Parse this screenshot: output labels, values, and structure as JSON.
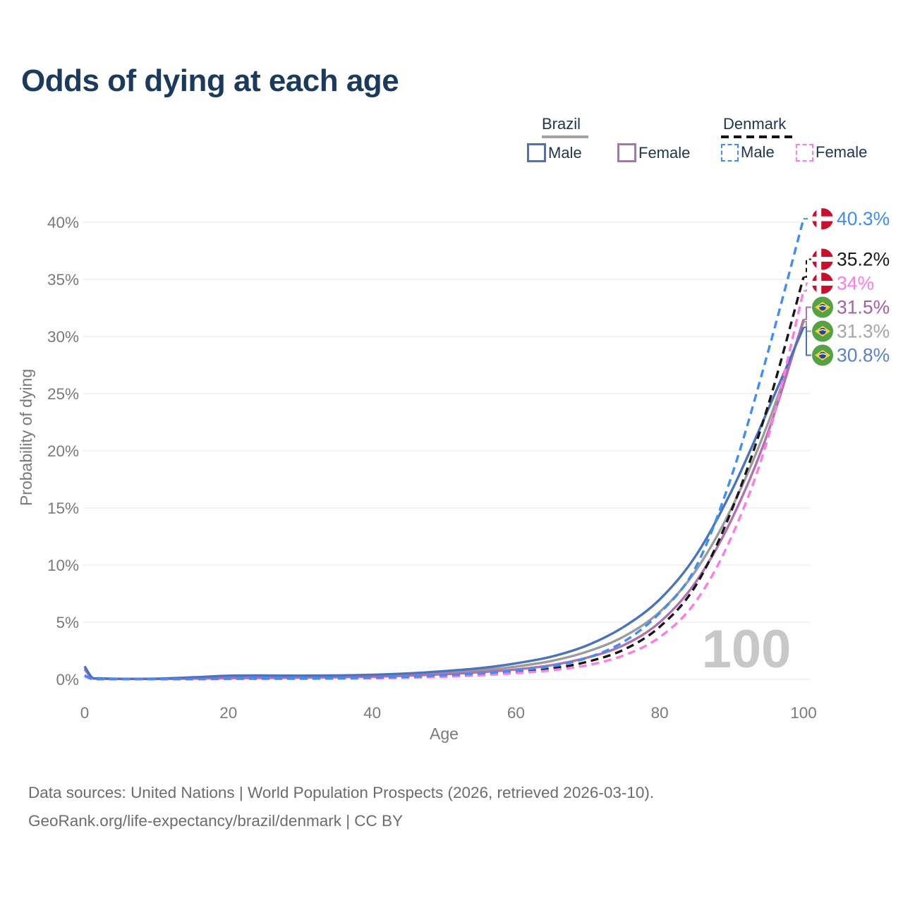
{
  "header": {
    "title": "Odds of dying at each age"
  },
  "legend": {
    "groups": [
      {
        "id": "brazil",
        "label": "Brazil",
        "underline_style": "solid",
        "underline_color": "#a3a3a3",
        "items": [
          {
            "id": "brazil-male",
            "label": "Male",
            "color": "#4a72bd",
            "dash": false
          },
          {
            "id": "brazil-female",
            "label": "Female",
            "color": "#b36fb0",
            "dash": false
          }
        ]
      },
      {
        "id": "denmark",
        "label": "Denmark",
        "underline_style": "dashed",
        "underline_color": "#141414",
        "items": [
          {
            "id": "denmark-male",
            "label": "Male",
            "color": "#3e8ef6",
            "dash": true
          },
          {
            "id": "denmark-female",
            "label": "Female",
            "color": "#ff7be4",
            "dash": true
          }
        ]
      }
    ]
  },
  "chart_data": {
    "type": "line",
    "title": "Odds of dying at each age",
    "xlabel": "Age",
    "ylabel": "Probability of dying",
    "xlim": [
      0,
      100
    ],
    "ylim": [
      0,
      40
    ],
    "x_ticks": [
      0,
      20,
      40,
      60,
      80,
      100
    ],
    "y_ticks": [
      0,
      5,
      10,
      15,
      20,
      25,
      30,
      35,
      40
    ],
    "y_tick_suffix": "%",
    "grid": "horizontal",
    "legend_position": "top-right",
    "watermark": "100",
    "x": [
      0,
      1,
      2,
      5,
      10,
      15,
      20,
      25,
      30,
      35,
      40,
      45,
      50,
      55,
      60,
      65,
      70,
      75,
      80,
      85,
      90,
      95,
      100
    ],
    "series": [
      {
        "id": "brazil-both",
        "name": "Brazil Both sexes",
        "country": "Brazil",
        "sex": "Both",
        "color": "#9b9b9b",
        "label_color": "#a6a6a6",
        "dash": false,
        "flag": "brazil",
        "end_label": "31.3%",
        "values": [
          1.0,
          0.16,
          0.08,
          0.05,
          0.05,
          0.12,
          0.22,
          0.24,
          0.24,
          0.26,
          0.31,
          0.42,
          0.58,
          0.8,
          1.12,
          1.62,
          2.45,
          3.75,
          5.9,
          9.5,
          15.0,
          22.3,
          31.3
        ]
      },
      {
        "id": "brazil-female",
        "name": "Brazil Female",
        "country": "Brazil",
        "sex": "Female",
        "color": "#b36fb0",
        "label_color": "#a85fa5",
        "dash": false,
        "flag": "brazil",
        "end_label": "31.5%",
        "values": [
          0.88,
          0.14,
          0.07,
          0.04,
          0.04,
          0.07,
          0.11,
          0.13,
          0.15,
          0.18,
          0.23,
          0.32,
          0.45,
          0.63,
          0.87,
          1.25,
          1.92,
          3.0,
          5.0,
          8.5,
          14.0,
          21.5,
          31.5
        ]
      },
      {
        "id": "brazil-male",
        "name": "Brazil Male",
        "country": "Brazil",
        "sex": "Male",
        "color": "#4a72bd",
        "label_color": "#5b82c8",
        "dash": false,
        "flag": "brazil",
        "end_label": "30.8%",
        "values": [
          1.15,
          0.18,
          0.09,
          0.05,
          0.06,
          0.18,
          0.32,
          0.34,
          0.33,
          0.34,
          0.4,
          0.52,
          0.72,
          0.98,
          1.4,
          2.0,
          3.0,
          4.6,
          7.0,
          10.8,
          16.5,
          23.5,
          30.8
        ]
      },
      {
        "id": "denmark-both",
        "name": "Denmark Both sexes",
        "country": "Denmark",
        "sex": "Both",
        "color": "#171717",
        "label_color": "#1a1a1a",
        "dash": true,
        "flag": "denmark",
        "end_label": "35.2%",
        "values": [
          0.3,
          0.04,
          0.02,
          0.01,
          0.01,
          0.02,
          0.05,
          0.06,
          0.07,
          0.08,
          0.12,
          0.18,
          0.29,
          0.44,
          0.65,
          0.95,
          1.55,
          2.6,
          4.6,
          8.2,
          14.8,
          23.8,
          35.2
        ]
      },
      {
        "id": "denmark-female",
        "name": "Denmark Female",
        "country": "Denmark",
        "sex": "Female",
        "color": "#ff7be4",
        "label_color": "#ff7be4",
        "dash": true,
        "flag": "denmark",
        "end_label": "34%",
        "values": [
          0.26,
          0.04,
          0.02,
          0.01,
          0.01,
          0.02,
          0.03,
          0.04,
          0.05,
          0.07,
          0.1,
          0.15,
          0.23,
          0.36,
          0.55,
          0.8,
          1.25,
          2.1,
          3.7,
          6.8,
          12.5,
          21.0,
          34.0
        ]
      },
      {
        "id": "denmark-male",
        "name": "Denmark Male",
        "country": "Denmark",
        "sex": "Male",
        "color": "#3e8ef6",
        "label_color": "#3e8ef6",
        "dash": true,
        "flag": "denmark",
        "end_label": "40.3%",
        "values": [
          0.35,
          0.05,
          0.02,
          0.01,
          0.01,
          0.03,
          0.06,
          0.08,
          0.08,
          0.1,
          0.15,
          0.22,
          0.36,
          0.52,
          0.76,
          1.15,
          1.9,
          3.3,
          5.8,
          9.8,
          17.8,
          28.5,
          40.3
        ]
      }
    ],
    "flag_colors": {
      "denmark_red": "#C8102E",
      "denmark_cross": "#ffffff",
      "brazil_green": "#55A146",
      "brazil_yellow": "#F5D33C",
      "brazil_blue": "#27419E"
    }
  },
  "footer": {
    "line1": "Data sources: United Nations | World Population Prospects (2026, retrieved 2026-03-10).",
    "line2": "GeoRank.org/life-expectancy/brazil/denmark | CC BY"
  }
}
